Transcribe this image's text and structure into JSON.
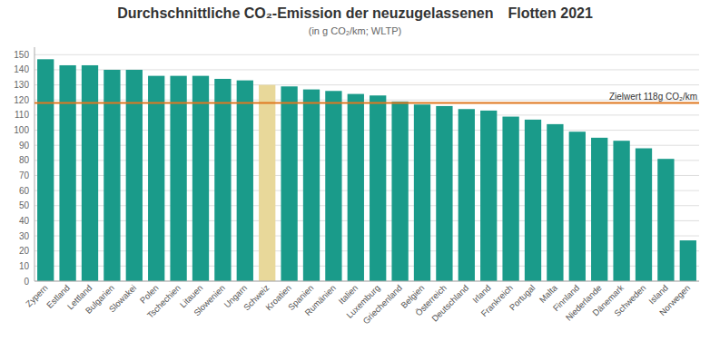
{
  "chart_data": {
    "type": "bar",
    "title": "Durchschnittliche CO₂-Emission der neuzugelassenen Flotten 2021",
    "subtitle": "(in g CO₂/km; WLTP)",
    "categories": [
      "Zypern",
      "Estland",
      "Lettland",
      "Bulgarien",
      "Slowakei",
      "Polen",
      "Tschechien",
      "Litauen",
      "Slowenien",
      "Ungarn",
      "Schweiz",
      "Kroatien",
      "Spanien",
      "Rumänien",
      "Italien",
      "Luxemburg",
      "Griechenland",
      "Belgien",
      "Österreich",
      "Deutschland",
      "Irland",
      "Frankreich",
      "Portugal",
      "Malta",
      "Finnland",
      "Niederlande",
      "Dänemark",
      "Schweden",
      "Island",
      "Norwegen"
    ],
    "values": [
      147,
      143,
      143,
      140,
      140,
      136,
      136,
      136,
      134,
      133,
      130,
      129,
      127,
      126,
      124,
      123,
      119,
      117,
      116,
      114,
      113,
      109,
      107,
      104,
      99,
      95,
      93,
      88,
      81,
      27
    ],
    "colors": [
      "#1a9b8a",
      "#1a9b8a",
      "#1a9b8a",
      "#1a9b8a",
      "#1a9b8a",
      "#1a9b8a",
      "#1a9b8a",
      "#1a9b8a",
      "#1a9b8a",
      "#1a9b8a",
      "#e8d89a",
      "#1a9b8a",
      "#1a9b8a",
      "#1a9b8a",
      "#1a9b8a",
      "#1a9b8a",
      "#1a9b8a",
      "#1a9b8a",
      "#1a9b8a",
      "#1a9b8a",
      "#1a9b8a",
      "#1a9b8a",
      "#1a9b8a",
      "#1a9b8a",
      "#1a9b8a",
      "#1a9b8a",
      "#1a9b8a",
      "#1a9b8a",
      "#1a9b8a",
      "#1a9b8a"
    ],
    "reference_line": {
      "value": 118,
      "label": "Zielwert 118g CO₂/km",
      "color": "#e07820"
    },
    "ylim": [
      0,
      155
    ],
    "yticks": [
      0,
      10,
      20,
      30,
      40,
      50,
      60,
      70,
      80,
      90,
      100,
      110,
      120,
      130,
      140,
      150
    ],
    "grid": true
  }
}
